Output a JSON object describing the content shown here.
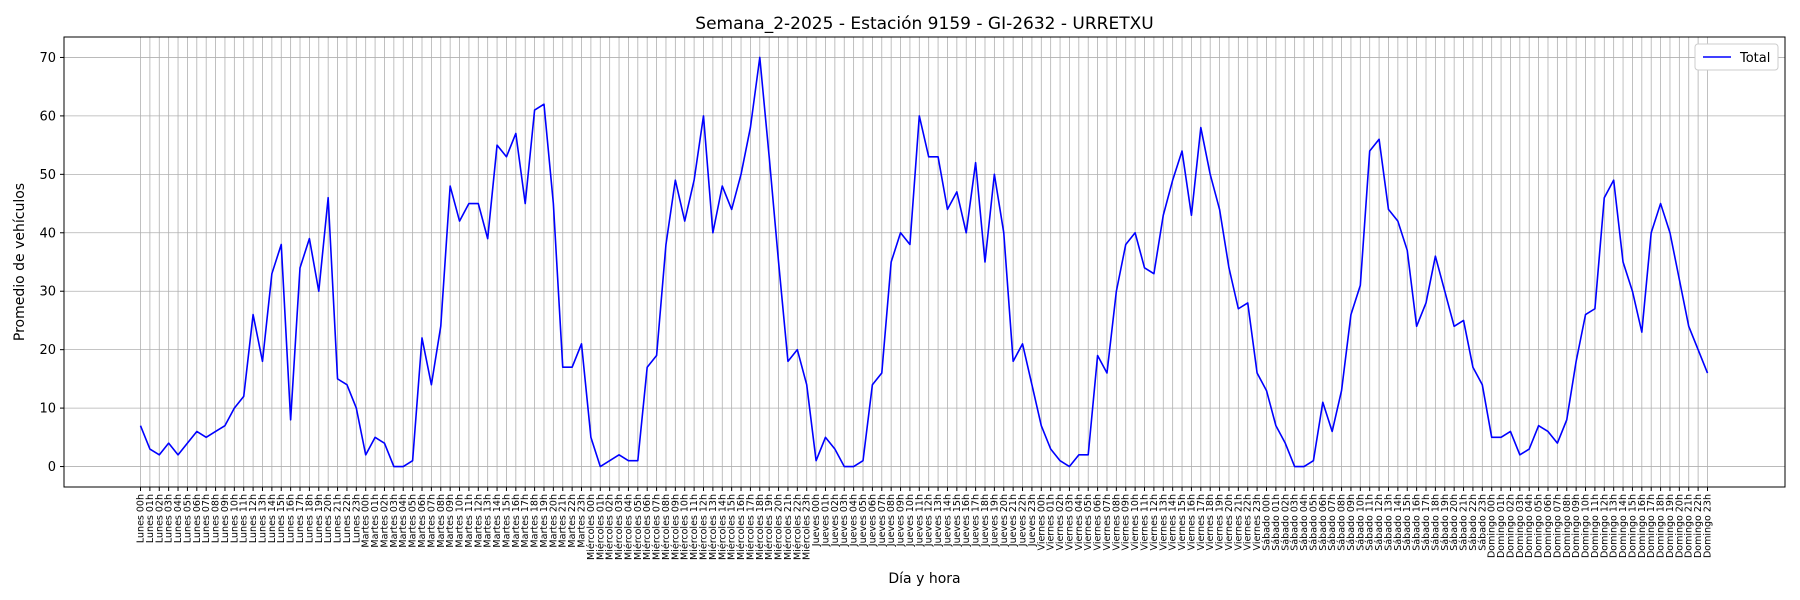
{
  "chart_data": {
    "type": "line",
    "title": "Semana_2-2025 - Estación 9159 - GI-2632  - URRETXU",
    "xlabel": "Día y hora",
    "ylabel": "Promedio de vehículos",
    "ylim": [
      -3.5,
      73.5
    ],
    "yticks": [
      0,
      10,
      20,
      30,
      40,
      50,
      60,
      70
    ],
    "grid": true,
    "legend_position": "top-right",
    "categories": [
      "Lunes 00h",
      "Lunes 01h",
      "Lunes 02h",
      "Lunes 03h",
      "Lunes 04h",
      "Lunes 05h",
      "Lunes 06h",
      "Lunes 07h",
      "Lunes 08h",
      "Lunes 09h",
      "Lunes 10h",
      "Lunes 11h",
      "Lunes 12h",
      "Lunes 13h",
      "Lunes 14h",
      "Lunes 15h",
      "Lunes 16h",
      "Lunes 17h",
      "Lunes 18h",
      "Lunes 19h",
      "Lunes 20h",
      "Lunes 21h",
      "Lunes 22h",
      "Lunes 23h",
      "Martes 00h",
      "Martes 01h",
      "Martes 02h",
      "Martes 03h",
      "Martes 04h",
      "Martes 05h",
      "Martes 06h",
      "Martes 07h",
      "Martes 08h",
      "Martes 09h",
      "Martes 10h",
      "Martes 11h",
      "Martes 12h",
      "Martes 13h",
      "Martes 14h",
      "Martes 15h",
      "Martes 16h",
      "Martes 17h",
      "Martes 18h",
      "Martes 19h",
      "Martes 20h",
      "Martes 21h",
      "Martes 22h",
      "Martes 23h",
      "Miércoles 00h",
      "Miércoles 01h",
      "Miércoles 02h",
      "Miércoles 03h",
      "Miércoles 04h",
      "Miércoles 05h",
      "Miércoles 06h",
      "Miércoles 07h",
      "Miércoles 08h",
      "Miércoles 09h",
      "Miércoles 10h",
      "Miércoles 11h",
      "Miércoles 12h",
      "Miércoles 13h",
      "Miércoles 14h",
      "Miércoles 15h",
      "Miércoles 16h",
      "Miércoles 17h",
      "Miércoles 18h",
      "Miércoles 19h",
      "Miércoles 20h",
      "Miércoles 21h",
      "Miércoles 22h",
      "Miércoles 23h",
      "Jueves 00h",
      "Jueves 01h",
      "Jueves 02h",
      "Jueves 03h",
      "Jueves 04h",
      "Jueves 05h",
      "Jueves 06h",
      "Jueves 07h",
      "Jueves 08h",
      "Jueves 09h",
      "Jueves 10h",
      "Jueves 11h",
      "Jueves 12h",
      "Jueves 13h",
      "Jueves 14h",
      "Jueves 15h",
      "Jueves 16h",
      "Jueves 17h",
      "Jueves 18h",
      "Jueves 19h",
      "Jueves 20h",
      "Jueves 21h",
      "Jueves 22h",
      "Jueves 23h",
      "Viernes 00h",
      "Viernes 01h",
      "Viernes 02h",
      "Viernes 03h",
      "Viernes 04h",
      "Viernes 05h",
      "Viernes 06h",
      "Viernes 07h",
      "Viernes 08h",
      "Viernes 09h",
      "Viernes 10h",
      "Viernes 11h",
      "Viernes 12h",
      "Viernes 13h",
      "Viernes 14h",
      "Viernes 15h",
      "Viernes 16h",
      "Viernes 17h",
      "Viernes 18h",
      "Viernes 19h",
      "Viernes 20h",
      "Viernes 21h",
      "Viernes 22h",
      "Viernes 23h",
      "Sábado 00h",
      "Sábado 01h",
      "Sábado 02h",
      "Sábado 03h",
      "Sábado 04h",
      "Sábado 05h",
      "Sábado 06h",
      "Sábado 07h",
      "Sábado 08h",
      "Sábado 09h",
      "Sábado 10h",
      "Sábado 11h",
      "Sábado 12h",
      "Sábado 13h",
      "Sábado 14h",
      "Sábado 15h",
      "Sábado 16h",
      "Sábado 17h",
      "Sábado 18h",
      "Sábado 19h",
      "Sábado 20h",
      "Sábado 21h",
      "Sábado 22h",
      "Sábado 23h",
      "Domingo 00h",
      "Domingo 01h",
      "Domingo 02h",
      "Domingo 03h",
      "Domingo 04h",
      "Domingo 05h",
      "Domingo 06h",
      "Domingo 07h",
      "Domingo 08h",
      "Domingo 09h",
      "Domingo 10h",
      "Domingo 11h",
      "Domingo 12h",
      "Domingo 13h",
      "Domingo 14h",
      "Domingo 15h",
      "Domingo 16h",
      "Domingo 17h",
      "Domingo 18h",
      "Domingo 19h",
      "Domingo 20h",
      "Domingo 21h",
      "Domingo 22h",
      "Domingo 23h"
    ],
    "series": [
      {
        "name": "Total",
        "color": "#0000ff",
        "values": [
          7,
          3,
          2,
          4,
          2,
          4,
          6,
          5,
          6,
          7,
          10,
          12,
          26,
          18,
          33,
          38,
          8,
          34,
          39,
          30,
          46,
          15,
          14,
          10,
          2,
          5,
          4,
          0,
          0,
          1,
          22,
          14,
          24,
          48,
          42,
          45,
          45,
          39,
          55,
          53,
          57,
          45,
          61,
          62,
          45,
          17,
          17,
          21,
          5,
          0,
          1,
          2,
          1,
          1,
          17,
          19,
          38,
          49,
          42,
          49,
          60,
          40,
          48,
          44,
          50,
          58,
          70,
          53,
          35,
          18,
          20,
          14,
          1,
          5,
          3,
          0,
          0,
          1,
          14,
          16,
          35,
          40,
          38,
          60,
          53,
          53,
          44,
          47,
          40,
          52,
          35,
          50,
          40,
          18,
          21,
          14,
          7,
          3,
          1,
          0,
          2,
          2,
          19,
          16,
          30,
          38,
          40,
          34,
          33,
          43,
          49,
          54,
          43,
          58,
          50,
          44,
          34,
          27,
          28,
          16,
          13,
          7,
          4,
          0,
          0,
          1,
          11,
          6,
          13,
          26,
          31,
          54,
          56,
          44,
          42,
          37,
          24,
          28,
          36,
          30,
          24,
          25,
          17,
          14,
          5,
          5,
          6,
          2,
          3,
          7,
          6,
          4,
          8,
          18,
          26,
          27,
          46,
          49,
          35,
          30,
          23,
          40,
          45,
          40,
          32,
          24,
          20,
          16
        ]
      }
    ]
  }
}
